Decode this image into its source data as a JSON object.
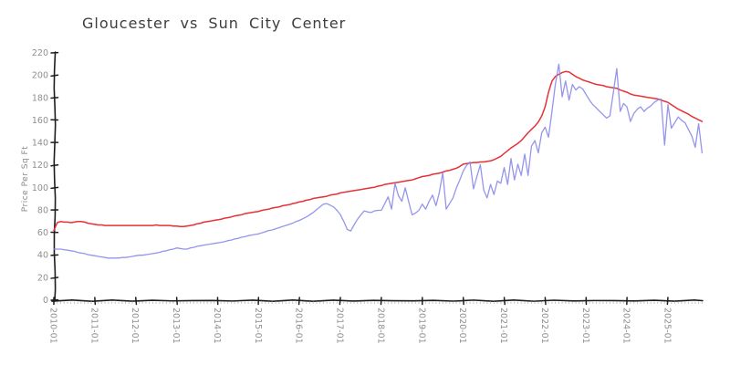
{
  "chart_data": {
    "type": "line",
    "title": "Gloucester vs Sun City Center",
    "xlabel": "",
    "ylabel": "Price Per Sq Ft",
    "x_start": "2010-01",
    "x_end": "2025-11",
    "x_frequency": "monthly",
    "x_tick_labels": [
      "2010-01",
      "2011-01",
      "2012-01",
      "2013-01",
      "2014-01",
      "2015-01",
      "2016-01",
      "2017-01",
      "2018-01",
      "2019-01",
      "2020-01",
      "2021-01",
      "2022-01",
      "2023-01",
      "2024-01",
      "2025-01"
    ],
    "y_ticks": [
      0,
      20,
      40,
      60,
      80,
      100,
      120,
      140,
      160,
      180,
      200,
      220
    ],
    "ylim": [
      0,
      220
    ],
    "grid": false,
    "legend": "none",
    "style": "xkcd-handdrawn",
    "colors": {
      "axis": "#1c1c1c",
      "tick_label": "#8f8f8f",
      "minor_tick": "#c9c9c9",
      "title": "#3d3d3d",
      "series1": "#e53137",
      "series2": "#8a8aea"
    },
    "series": [
      {
        "name": "Gloucester",
        "color": "#e53137",
        "values": [
          62,
          69,
          70,
          69.5,
          69.5,
          69,
          69.5,
          70,
          70,
          69.5,
          68.5,
          68,
          67.5,
          67,
          67,
          66.5,
          66.5,
          66.5,
          66.5,
          66.5,
          66.5,
          66.5,
          66.5,
          66.5,
          66.5,
          66.5,
          66.5,
          66.5,
          66.5,
          66.5,
          67,
          66.5,
          66.5,
          66.5,
          66.5,
          66,
          66,
          65.5,
          65.5,
          66,
          66.5,
          67,
          68,
          68.5,
          69.5,
          70,
          70.5,
          71,
          71.5,
          72,
          73,
          73.5,
          74,
          75,
          75.5,
          76,
          77,
          77.5,
          78,
          78.5,
          79,
          80,
          80.5,
          81,
          82,
          82.5,
          83,
          84,
          84.5,
          85,
          86,
          86.5,
          87.5,
          88,
          89,
          89.5,
          90.5,
          91,
          91.5,
          92,
          92.5,
          93.5,
          94,
          94.5,
          95.5,
          96,
          96.5,
          97,
          97.5,
          98,
          98.5,
          99,
          99.5,
          100,
          100.5,
          101.5,
          102,
          103,
          103.5,
          104,
          104.5,
          105,
          105.5,
          106,
          106.5,
          107,
          108,
          109,
          110,
          110.5,
          111,
          112,
          112.5,
          113,
          114,
          115,
          115.5,
          116.5,
          117.5,
          119,
          121,
          121.5,
          122,
          122.5,
          122.5,
          123,
          123,
          123.5,
          124,
          125,
          126.5,
          128,
          130.5,
          133,
          135.5,
          137.5,
          139.5,
          142,
          145.5,
          149,
          152,
          155,
          158.5,
          164,
          172,
          185,
          195,
          199,
          201,
          202.5,
          203.5,
          203,
          201,
          199,
          197.5,
          196,
          195,
          194,
          193,
          192,
          191.5,
          191,
          190,
          189.5,
          189,
          188.5,
          187,
          186,
          185,
          183.5,
          182.5,
          182,
          181.5,
          181,
          180.5,
          180,
          179.5,
          179,
          178,
          177,
          176,
          174,
          172,
          170,
          168.5,
          167,
          165.5,
          163.5,
          162,
          160.5,
          159
        ]
      },
      {
        "name": "Sun City Center",
        "color": "#8a8aea",
        "values": [
          45.5,
          45.5,
          45.5,
          45,
          44.5,
          44,
          43.5,
          42.5,
          42,
          41.5,
          40.5,
          40,
          39.5,
          39,
          38.5,
          38,
          37.5,
          37.5,
          37.5,
          37.5,
          38,
          38,
          38.5,
          39,
          39.5,
          40,
          40,
          40.5,
          41,
          41.5,
          42,
          42.5,
          43.5,
          44,
          45,
          45.5,
          46.5,
          46,
          45.5,
          45.5,
          46.5,
          47,
          48,
          48.5,
          49,
          49.5,
          50,
          50.5,
          51,
          51.5,
          52,
          53,
          53.5,
          54.5,
          55,
          56,
          56.5,
          57.5,
          58,
          58.5,
          59,
          60,
          61,
          62,
          62.5,
          63.5,
          64.5,
          65.5,
          66.5,
          67.5,
          68.5,
          70,
          71,
          72.5,
          74,
          76,
          78,
          80.5,
          83,
          85.5,
          86,
          84.5,
          83,
          80,
          76,
          70,
          63,
          61.5,
          67,
          72,
          76,
          79.5,
          78.5,
          78,
          79.5,
          80,
          80,
          86,
          92,
          81,
          104,
          93,
          88,
          100,
          88,
          76,
          77.5,
          80,
          85.5,
          81,
          88,
          93.5,
          84,
          96,
          113.5,
          81,
          86,
          91,
          100,
          107,
          115,
          120,
          123,
          99,
          110,
          120.5,
          98,
          91,
          103,
          94,
          106,
          104,
          118,
          103,
          126,
          107,
          121,
          111,
          130,
          111,
          137,
          142,
          131,
          149,
          154,
          145,
          168,
          192,
          210,
          181,
          195,
          178,
          192,
          187,
          190,
          188,
          183,
          178,
          174,
          171,
          168,
          165,
          162,
          164,
          185,
          206,
          168,
          175,
          172,
          159,
          166,
          170,
          172,
          168,
          171,
          173,
          176,
          178,
          179,
          138,
          174,
          153,
          158,
          163,
          160,
          158,
          152,
          146,
          136,
          157,
          131
        ]
      }
    ]
  }
}
